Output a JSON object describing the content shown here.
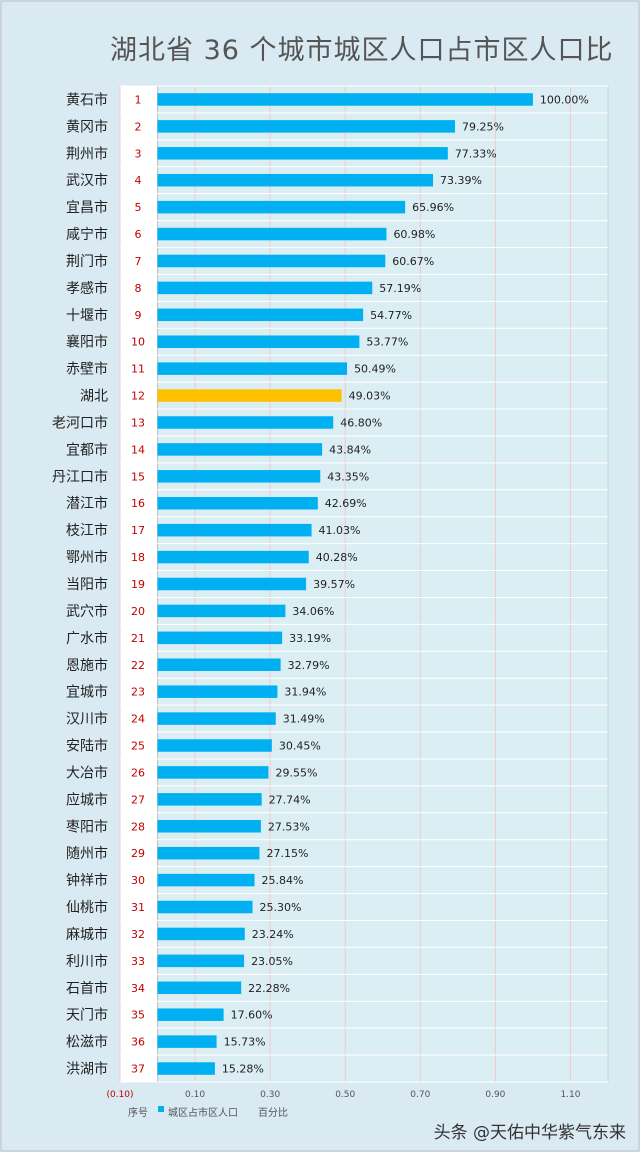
{
  "chart_data": {
    "type": "bar",
    "orientation": "horizontal",
    "title": "湖北省 36 个城市城区人口占市区人口比",
    "categories": [
      "黄石市",
      "黄冈市",
      "荆州市",
      "武汉市",
      "宜昌市",
      "咸宁市",
      "荆门市",
      "孝感市",
      "十堰市",
      "襄阳市",
      "赤壁市",
      "湖北",
      "老河口市",
      "宜都市",
      "丹江口市",
      "潜江市",
      "枝江市",
      "鄂州市",
      "当阳市",
      "武穴市",
      "广水市",
      "恩施市",
      "宜城市",
      "汉川市",
      "安陆市",
      "大冶市",
      "应城市",
      "枣阳市",
      "随州市",
      "钟祥市",
      "仙桃市",
      "麻城市",
      "利川市",
      "石首市",
      "天门市",
      "松滋市",
      "洪湖市"
    ],
    "ranks": [
      "1",
      "2",
      "3",
      "4",
      "5",
      "6",
      "7",
      "8",
      "9",
      "10",
      "11",
      "12",
      "13",
      "14",
      "15",
      "16",
      "17",
      "18",
      "19",
      "20",
      "21",
      "22",
      "23",
      "24",
      "25",
      "26",
      "27",
      "28",
      "29",
      "30",
      "31",
      "32",
      "33",
      "34",
      "35",
      "36",
      "37"
    ],
    "values": [
      1.0,
      0.7925,
      0.7733,
      0.7339,
      0.6596,
      0.6098,
      0.6067,
      0.5719,
      0.5477,
      0.5377,
      0.5049,
      0.4903,
      0.468,
      0.4384,
      0.4335,
      0.4269,
      0.4103,
      0.4028,
      0.3957,
      0.3406,
      0.3319,
      0.3279,
      0.3194,
      0.3149,
      0.3045,
      0.2955,
      0.2774,
      0.2753,
      0.2715,
      0.2584,
      0.253,
      0.2324,
      0.2305,
      0.2228,
      0.176,
      0.1573,
      0.1528
    ],
    "value_labels": [
      "100.00%",
      "79.25%",
      "77.33%",
      "73.39%",
      "65.96%",
      "60.98%",
      "60.67%",
      "57.19%",
      "54.77%",
      "53.77%",
      "50.49%",
      "49.03%",
      "46.80%",
      "43.84%",
      "43.35%",
      "42.69%",
      "41.03%",
      "40.28%",
      "39.57%",
      "34.06%",
      "33.19%",
      "32.79%",
      "31.94%",
      "31.49%",
      "30.45%",
      "29.55%",
      "27.74%",
      "27.53%",
      "27.15%",
      "25.84%",
      "25.30%",
      "23.24%",
      "23.05%",
      "22.28%",
      "17.60%",
      "15.73%",
      "15.28%"
    ],
    "highlight_index": 11,
    "xlim": [
      -0.1,
      1.2
    ],
    "xticks": [
      -0.1,
      0.1,
      0.3,
      0.5,
      0.7,
      0.9,
      1.1
    ],
    "xtick_labels": [
      "(0.10)",
      "0.10",
      "0.30",
      "0.50",
      "0.70",
      "0.90",
      "1.10"
    ],
    "legend_items": [
      "序号",
      "城区占市区人口",
      "百分比"
    ],
    "legend_position": "bottom",
    "grid": true,
    "colors": {
      "bar": "#00b0f0",
      "highlight": "#ffc000",
      "rank_text": "#c00000",
      "label_bg": "#ffffff",
      "plot_bg": "#dbeef4"
    }
  },
  "watermark": "头条 @天佑中华紫气东来"
}
